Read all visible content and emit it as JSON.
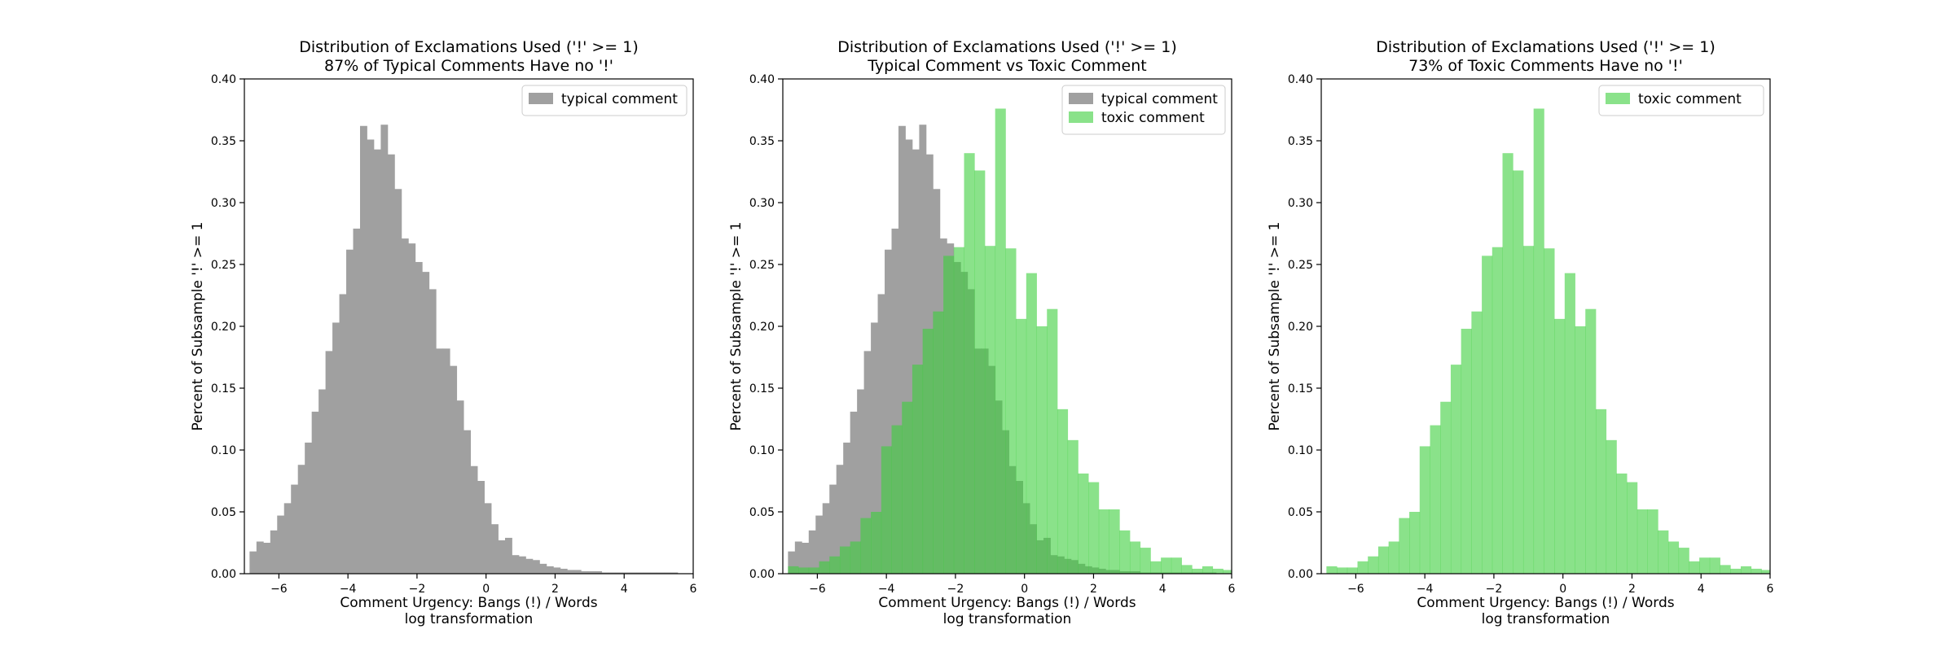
{
  "chart_data": [
    {
      "type": "bar",
      "title": "Distribution of Exclamations Used ('!' >= 1)",
      "subtitle": "87% of Typical Comments Have no '!'",
      "xlabel": "Comment Urgency: Bangs (!) / Words",
      "xlabel2": "log transformation",
      "ylabel": "Percent of Subsample '!' >= 1",
      "xlim": [
        -7,
        6
      ],
      "ylim": [
        0,
        0.4
      ],
      "xticks": [
        "−6",
        "−4",
        "−2",
        "0",
        "2",
        "4",
        "6"
      ],
      "yticks": [
        "0.00",
        "0.05",
        "0.10",
        "0.15",
        "0.20",
        "0.25",
        "0.30",
        "0.35",
        "0.40"
      ],
      "legend": "top-right",
      "series": [
        {
          "name": "typical comment",
          "color": "#a0a0a0",
          "opacity": 1,
          "start": -6.85,
          "width": 0.2,
          "values": [
            0.018,
            0.026,
            0.025,
            0.035,
            0.047,
            0.057,
            0.072,
            0.088,
            0.106,
            0.131,
            0.149,
            0.18,
            0.203,
            0.226,
            0.262,
            0.279,
            0.362,
            0.351,
            0.343,
            0.363,
            0.339,
            0.311,
            0.271,
            0.267,
            0.252,
            0.244,
            0.23,
            0.182,
            0.182,
            0.168,
            0.14,
            0.116,
            0.087,
            0.075,
            0.057,
            0.04,
            0.027,
            0.029,
            0.015,
            0.014,
            0.012,
            0.011,
            0.008,
            0.006,
            0.005,
            0.004,
            0.003,
            0.003,
            0.002,
            0.002,
            0.002,
            0.001,
            0.001,
            0.001,
            0.001,
            0.001,
            0.001,
            0.001,
            0.001,
            0.001,
            0.001,
            0.001
          ]
        }
      ]
    },
    {
      "type": "bar",
      "title": "Distribution of Exclamations Used ('!' >= 1)",
      "subtitle": "Typical Comment vs Toxic Comment",
      "xlabel": "Comment Urgency: Bangs (!) / Words",
      "xlabel2": "log transformation",
      "ylabel": "Percent of Subsample '!' >= 1",
      "xlim": [
        -7,
        6
      ],
      "ylim": [
        0,
        0.4
      ],
      "xticks": [
        "−6",
        "−4",
        "−2",
        "0",
        "2",
        "4",
        "6"
      ],
      "yticks": [
        "0.00",
        "0.05",
        "0.10",
        "0.15",
        "0.20",
        "0.25",
        "0.30",
        "0.35",
        "0.40"
      ],
      "legend": "top-right",
      "series": [
        {
          "name": "typical comment",
          "color": "#a0a0a0",
          "opacity": 1,
          "start": -6.85,
          "width": 0.2,
          "values": [
            0.018,
            0.026,
            0.025,
            0.035,
            0.047,
            0.057,
            0.072,
            0.088,
            0.106,
            0.131,
            0.149,
            0.18,
            0.203,
            0.226,
            0.262,
            0.279,
            0.362,
            0.351,
            0.343,
            0.363,
            0.339,
            0.311,
            0.271,
            0.267,
            0.252,
            0.244,
            0.23,
            0.182,
            0.182,
            0.168,
            0.14,
            0.116,
            0.087,
            0.075,
            0.057,
            0.04,
            0.027,
            0.029,
            0.015,
            0.014,
            0.012,
            0.011,
            0.008,
            0.006,
            0.005,
            0.004,
            0.003,
            0.003,
            0.002,
            0.002,
            0.002,
            0.001,
            0.001,
            0.001,
            0.001,
            0.001,
            0.001,
            0.001,
            0.001,
            0.001,
            0.001,
            0.001
          ]
        },
        {
          "name": "toxic comment",
          "color": "#3ccf3c",
          "opacity": 0.6,
          "start": -6.85,
          "width": 0.3,
          "values": [
            0.006,
            0.005,
            0.005,
            0.01,
            0.014,
            0.022,
            0.026,
            0.045,
            0.05,
            0.103,
            0.12,
            0.139,
            0.169,
            0.198,
            0.212,
            0.257,
            0.264,
            0.34,
            0.326,
            0.265,
            0.376,
            0.263,
            0.206,
            0.243,
            0.2,
            0.214,
            0.133,
            0.108,
            0.081,
            0.074,
            0.052,
            0.052,
            0.035,
            0.026,
            0.021,
            0.01,
            0.013,
            0.013,
            0.007,
            0.004,
            0.006,
            0.004,
            0.003,
            0.002,
            0.002,
            0.001,
            0.001,
            0.001
          ]
        }
      ]
    },
    {
      "type": "bar",
      "title": "Distribution of Exclamations Used ('!' >= 1)",
      "subtitle": "73% of Toxic Comments Have no '!'",
      "xlabel": "Comment Urgency: Bangs (!) / Words",
      "xlabel2": "log transformation",
      "ylabel": "Percent of Subsample '!' >= 1",
      "xlim": [
        -7,
        6
      ],
      "ylim": [
        0,
        0.4
      ],
      "xticks": [
        "−6",
        "−4",
        "−2",
        "0",
        "2",
        "4",
        "6"
      ],
      "yticks": [
        "0.00",
        "0.05",
        "0.10",
        "0.15",
        "0.20",
        "0.25",
        "0.30",
        "0.35",
        "0.40"
      ],
      "legend": "top-right",
      "series": [
        {
          "name": "toxic comment",
          "color": "#3ccf3c",
          "opacity": 0.6,
          "start": -6.85,
          "width": 0.3,
          "values": [
            0.006,
            0.005,
            0.005,
            0.01,
            0.014,
            0.022,
            0.026,
            0.045,
            0.05,
            0.103,
            0.12,
            0.139,
            0.169,
            0.198,
            0.212,
            0.257,
            0.264,
            0.34,
            0.326,
            0.265,
            0.376,
            0.263,
            0.206,
            0.243,
            0.2,
            0.214,
            0.133,
            0.108,
            0.081,
            0.074,
            0.052,
            0.052,
            0.035,
            0.026,
            0.021,
            0.01,
            0.013,
            0.013,
            0.007,
            0.004,
            0.006,
            0.004,
            0.003,
            0.002,
            0.002,
            0.001,
            0.001,
            0.001
          ]
        }
      ]
    }
  ]
}
